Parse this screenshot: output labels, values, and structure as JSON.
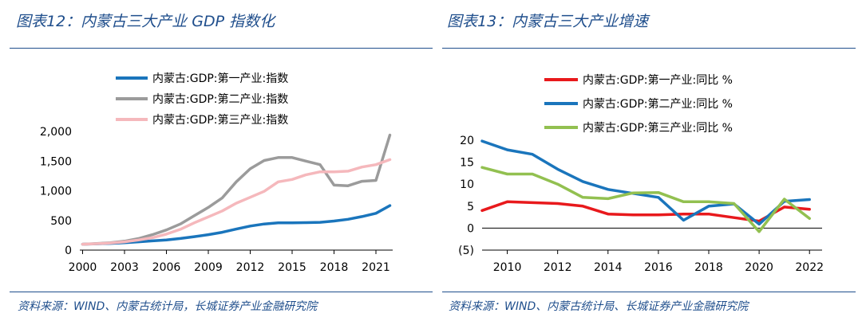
{
  "left_title": "图表12：内蒙古三大产业 GDP 指数化",
  "right_title": "图表13：内蒙古三大产业增速",
  "left_source": "资料来源：WIND、内蒙古统计局，长城证券产业金融研究院",
  "right_source": "资料来源：WIND、内蒙古统计局、长城证券产业金融研究院",
  "colors": {
    "brand": "#1f4e8c",
    "primary": "#e8191c",
    "secondary": "#1a75bc",
    "tertiary": "#9b9b9b",
    "pink": "#f5b8bc",
    "green": "#92c050"
  },
  "chart_data": [
    {
      "type": "line",
      "title": "图表12：内蒙古三大产业 GDP 指数化",
      "x": [
        2000,
        2001,
        2002,
        2003,
        2004,
        2005,
        2006,
        2007,
        2008,
        2009,
        2010,
        2011,
        2012,
        2013,
        2014,
        2015,
        2016,
        2017,
        2018,
        2019,
        2020,
        2021,
        2022
      ],
      "xticks": [
        2000,
        2003,
        2006,
        2009,
        2012,
        2015,
        2018,
        2021
      ],
      "xticklabels": [
        "2000",
        "2003",
        "2006",
        "2009",
        "2012",
        "2015",
        "2018",
        "2021"
      ],
      "ylim": [
        0,
        2000
      ],
      "yticks": [
        0,
        500,
        1000,
        1500,
        2000
      ],
      "yticklabels": [
        "0",
        "500",
        "1,000",
        "1,500",
        "2,000"
      ],
      "legend_position": "top",
      "series": [
        {
          "name": "内蒙古:GDP:第一产业:指数",
          "color": "#1a75bc",
          "values": [
            100,
            106,
            113,
            124,
            140,
            156,
            171,
            196,
            227,
            260,
            300,
            355,
            405,
            440,
            460,
            460,
            463,
            468,
            490,
            520,
            565,
            620,
            750
          ]
        },
        {
          "name": "内蒙古:GDP:第二产业:指数",
          "color": "#9b9b9b",
          "values": [
            100,
            110,
            125,
            150,
            195,
            260,
            340,
            440,
            580,
            720,
            880,
            1150,
            1370,
            1510,
            1560,
            1560,
            1500,
            1440,
            1095,
            1085,
            1160,
            1175,
            1940
          ]
        },
        {
          "name": "内蒙古:GDP:第三产业:指数",
          "color": "#f5b8bc",
          "values": [
            100,
            108,
            120,
            140,
            170,
            210,
            270,
            350,
            460,
            560,
            660,
            790,
            890,
            990,
            1150,
            1190,
            1270,
            1320,
            1320,
            1330,
            1400,
            1440,
            1525
          ]
        }
      ]
    },
    {
      "type": "line",
      "title": "图表13：内蒙古三大产业增速",
      "x": [
        2009,
        2010,
        2011,
        2012,
        2013,
        2014,
        2015,
        2016,
        2017,
        2018,
        2019,
        2020,
        2021,
        2022
      ],
      "xticks": [
        2010,
        2012,
        2014,
        2016,
        2018,
        2020,
        2022
      ],
      "xticklabels": [
        "2010",
        "2012",
        "2014",
        "2016",
        "2018",
        "2020",
        "2022"
      ],
      "ylim": [
        -5,
        20
      ],
      "yticks": [
        -5,
        0,
        5,
        10,
        15,
        20
      ],
      "yticklabels": [
        "(5)",
        "0",
        "5",
        "10",
        "15",
        "20"
      ],
      "legend_position": "top",
      "series": [
        {
          "name": "内蒙古:GDP:第一产业:同比 %",
          "color": "#e8191c",
          "values": [
            4.0,
            6.0,
            5.8,
            5.6,
            5.0,
            3.2,
            3.0,
            3.0,
            3.2,
            3.2,
            2.4,
            1.6,
            4.8,
            4.3
          ]
        },
        {
          "name": "内蒙古:GDP:第二产业:同比 %",
          "color": "#1a75bc",
          "values": [
            19.8,
            17.8,
            16.8,
            13.4,
            10.6,
            8.8,
            7.9,
            7.0,
            1.8,
            5.0,
            5.5,
            0.9,
            6.1,
            6.5
          ]
        },
        {
          "name": "内蒙古:GDP:第三产业:同比 %",
          "color": "#92c050",
          "values": [
            13.8,
            12.3,
            12.3,
            10.0,
            7.0,
            6.7,
            8.0,
            8.1,
            6.0,
            6.0,
            5.6,
            -0.8,
            6.6,
            2.2
          ]
        }
      ]
    }
  ]
}
